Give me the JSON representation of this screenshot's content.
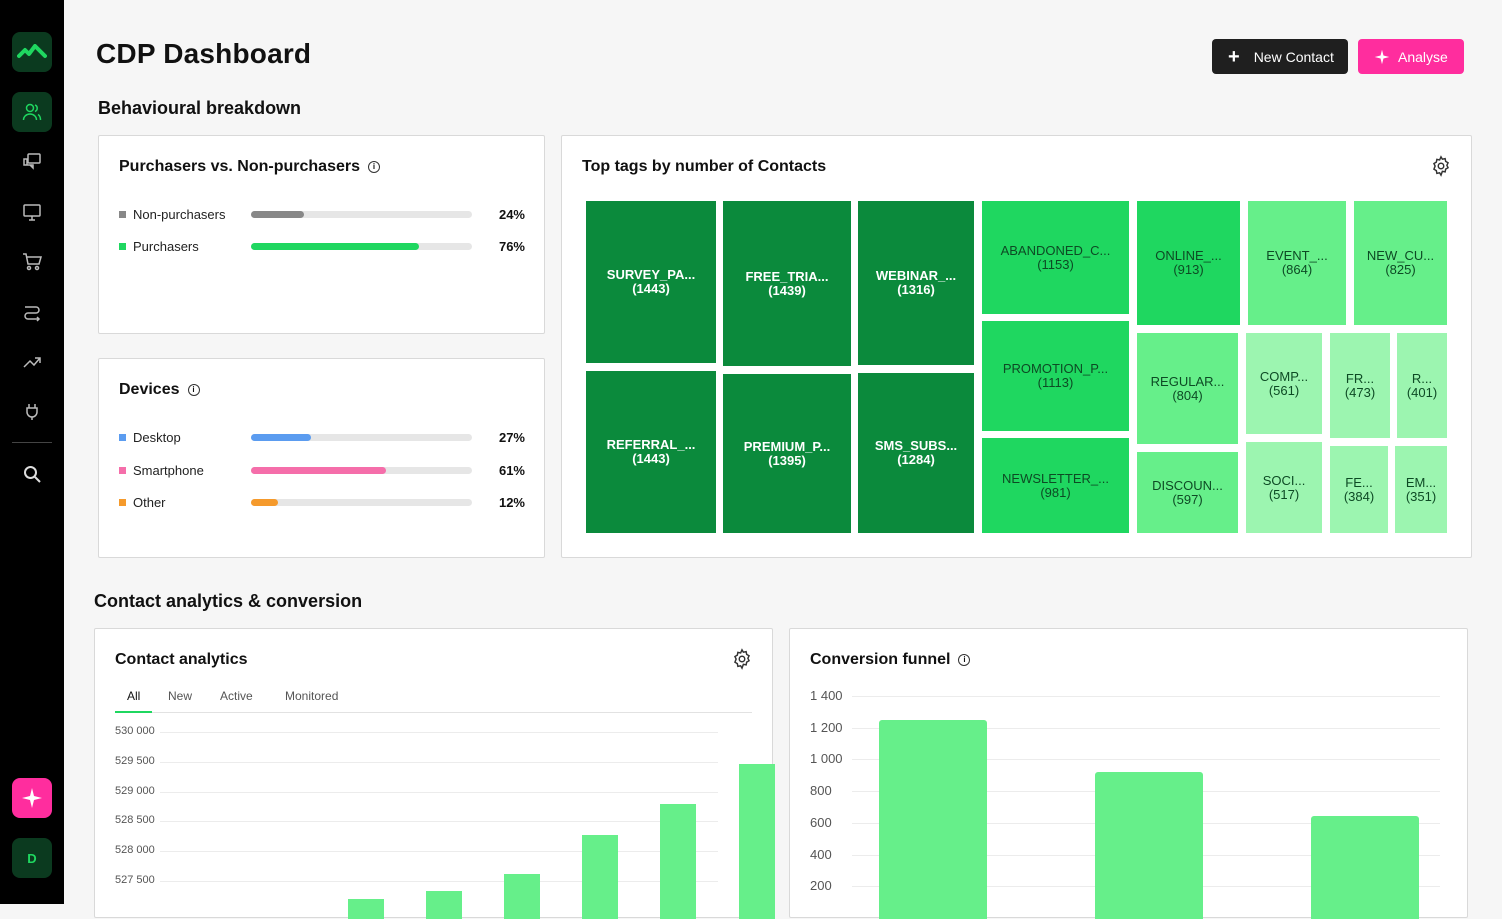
{
  "header": {
    "title": "CDP Dashboard",
    "new_contact_label": "New Contact",
    "analyse_label": "Analyse"
  },
  "sidebar": {
    "avatar_initial": "D",
    "items": [
      "contacts-icon",
      "chat-icon",
      "monitor-icon",
      "cart-icon",
      "flows-icon",
      "trend-icon",
      "plug-icon",
      "search-icon"
    ]
  },
  "behavioural": {
    "title": "Behavioural breakdown",
    "purchasers_card": {
      "title": "Purchasers vs. Non-purchasers",
      "rows": [
        {
          "label": "Non-purchasers",
          "percent": "24%",
          "fraction": 0.24,
          "color": "#888888"
        },
        {
          "label": "Purchasers",
          "percent": "76%",
          "fraction": 0.76,
          "color": "#1fd760"
        }
      ]
    },
    "devices_card": {
      "title": "Devices",
      "rows": [
        {
          "label": "Desktop",
          "percent": "27%",
          "fraction": 0.27,
          "color": "#5b9cf0"
        },
        {
          "label": "Smartphone",
          "percent": "61%",
          "fraction": 0.61,
          "color": "#f56eaa"
        },
        {
          "label": "Other",
          "percent": "12%",
          "fraction": 0.12,
          "color": "#f59a2c"
        }
      ]
    },
    "tags_card": {
      "title": "Top tags by number of Contacts",
      "tags": [
        {
          "label": "SURVEY_PA...",
          "count": "(1443)"
        },
        {
          "label": "REFERRAL_...",
          "count": "(1443)"
        },
        {
          "label": "FREE_TRIA...",
          "count": "(1439)"
        },
        {
          "label": "PREMIUM_P...",
          "count": "(1395)"
        },
        {
          "label": "WEBINAR_...",
          "count": "(1316)"
        },
        {
          "label": "SMS_SUBS...",
          "count": "(1284)"
        },
        {
          "label": "ABANDONED_C...",
          "count": "(1153)"
        },
        {
          "label": "PROMOTION_P...",
          "count": "(1113)"
        },
        {
          "label": "NEWSLETTER_...",
          "count": "(981)"
        },
        {
          "label": "ONLINE_...",
          "count": "(913)"
        },
        {
          "label": "EVENT_...",
          "count": "(864)"
        },
        {
          "label": "NEW_CU...",
          "count": "(825)"
        },
        {
          "label": "REGULAR...",
          "count": "(804)"
        },
        {
          "label": "COMP...",
          "count": "(561)"
        },
        {
          "label": "FR...",
          "count": "(473)"
        },
        {
          "label": "R...",
          "count": "(401)"
        },
        {
          "label": "DISCOUN...",
          "count": "(597)"
        },
        {
          "label": "SOCI...",
          "count": "(517)"
        },
        {
          "label": "FE...",
          "count": "(384)"
        },
        {
          "label": "EM...",
          "count": "(351)"
        }
      ]
    }
  },
  "analytics": {
    "title": "Contact analytics & conversion",
    "contact_card": {
      "title": "Contact analytics",
      "tabs": [
        "All",
        "New",
        "Active",
        "Monitored"
      ],
      "active_tab": "All"
    },
    "funnel_card": {
      "title": "Conversion funnel"
    }
  },
  "chart_data": [
    {
      "type": "bar",
      "title": "Contact analytics",
      "yticks": [
        "530 000",
        "529 500",
        "529 000",
        "528 500",
        "528 000",
        "527 500"
      ],
      "values": [
        527000,
        527200,
        527330,
        527620,
        528270,
        528790,
        529470
      ],
      "color": "#66ef8a"
    },
    {
      "type": "bar",
      "title": "Conversion funnel",
      "yticks": [
        "1 400",
        "1 200",
        "1 000",
        "800",
        "600",
        "400",
        "200"
      ],
      "values": [
        1250,
        920,
        640
      ],
      "ylim": [
        0,
        1400
      ],
      "color": "#66ef8a"
    }
  ]
}
